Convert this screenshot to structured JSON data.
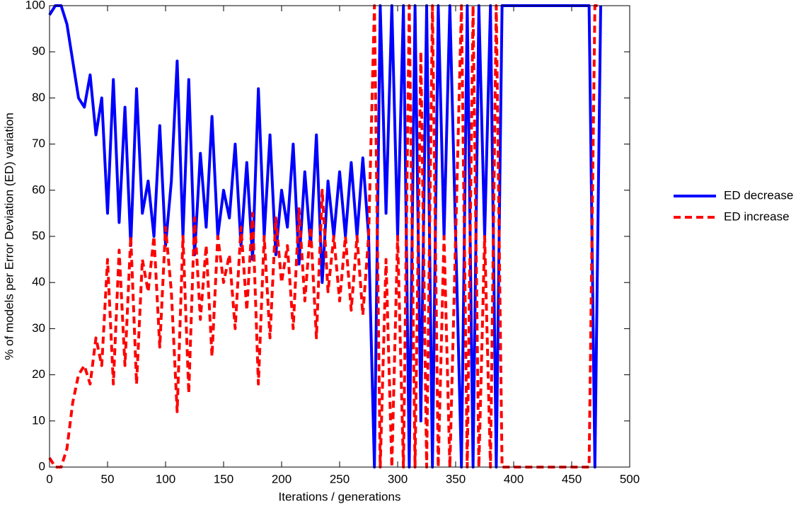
{
  "chart_data": {
    "type": "line",
    "xlabel": "Iterations / generations",
    "ylabel": "% of models per Error Deviation (ED) variation",
    "x": [
      0,
      5,
      10,
      15,
      20,
      25,
      30,
      35,
      40,
      45,
      50,
      55,
      60,
      65,
      70,
      75,
      80,
      85,
      90,
      95,
      100,
      105,
      110,
      115,
      120,
      125,
      130,
      135,
      140,
      145,
      150,
      155,
      160,
      165,
      170,
      175,
      180,
      185,
      190,
      195,
      200,
      205,
      210,
      215,
      220,
      225,
      230,
      235,
      240,
      245,
      250,
      255,
      260,
      265,
      270,
      275,
      280,
      285,
      290,
      295,
      300,
      305,
      310,
      315,
      320,
      325,
      330,
      335,
      340,
      345,
      350,
      355,
      360,
      365,
      370,
      375,
      380,
      385,
      390,
      395,
      400,
      405,
      410,
      415,
      420,
      425,
      430,
      435,
      440,
      445,
      450,
      455,
      460,
      465,
      470,
      475
    ],
    "series": [
      {
        "name": "ED decrease",
        "color": "#0000ff",
        "dash": false,
        "values": [
          98,
          100,
          100,
          96,
          88,
          80,
          78,
          85,
          72,
          80,
          55,
          84,
          53,
          78,
          48,
          82,
          55,
          62,
          50,
          74,
          48,
          62,
          88,
          50,
          84,
          46,
          68,
          52,
          76,
          50,
          60,
          54,
          70,
          48,
          66,
          45,
          82,
          50,
          72,
          46,
          60,
          52,
          70,
          44,
          64,
          48,
          72,
          40,
          62,
          50,
          64,
          50,
          66,
          50,
          67,
          50,
          0,
          100,
          55,
          100,
          50,
          100,
          0,
          100,
          10,
          100,
          0,
          100,
          50,
          100,
          50,
          0,
          100,
          0,
          100,
          50,
          100,
          0,
          100,
          100,
          100,
          100,
          100,
          100,
          100,
          100,
          100,
          100,
          100,
          100,
          100,
          100,
          100,
          100,
          0,
          100
        ]
      },
      {
        "name": "ED increase",
        "color": "#ff0000",
        "dash": true,
        "values": [
          2,
          0,
          0,
          4,
          14,
          20,
          22,
          18,
          28,
          22,
          45,
          18,
          47,
          22,
          50,
          18,
          45,
          38,
          50,
          26,
          52,
          38,
          12,
          50,
          16,
          54,
          32,
          48,
          24,
          50,
          40,
          46,
          30,
          52,
          34,
          55,
          18,
          50,
          28,
          54,
          40,
          48,
          30,
          56,
          36,
          52,
          28,
          60,
          38,
          50,
          36,
          50,
          34,
          50,
          33,
          50,
          100,
          0,
          45,
          0,
          50,
          0,
          100,
          0,
          90,
          0,
          100,
          0,
          50,
          0,
          50,
          100,
          0,
          100,
          0,
          50,
          0,
          100,
          0,
          0,
          0,
          0,
          0,
          0,
          0,
          0,
          0,
          0,
          0,
          0,
          0,
          0,
          0,
          0,
          100,
          100
        ]
      }
    ],
    "xlim": [
      0,
      500
    ],
    "xticks": [
      0,
      50,
      100,
      150,
      200,
      250,
      300,
      350,
      400,
      450,
      500
    ],
    "ylim": [
      0,
      100
    ],
    "yticks": [
      0,
      10,
      20,
      30,
      40,
      50,
      60,
      70,
      80,
      90,
      100
    ],
    "legend": "right"
  }
}
